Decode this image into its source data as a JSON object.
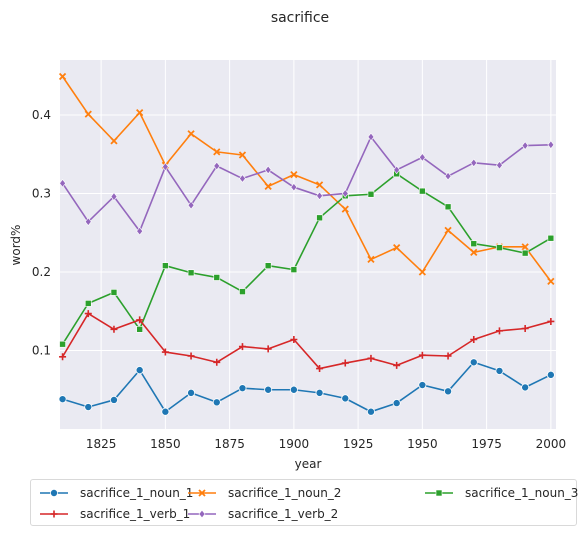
{
  "chart_data": {
    "type": "line",
    "title": "sacrifice",
    "xlabel": "year",
    "ylabel": "word%",
    "xlim": [
      1809,
      2002
    ],
    "ylim": [
      0.0,
      0.47
    ],
    "x_ticks": [
      1825,
      1850,
      1875,
      1900,
      1925,
      1950,
      1975,
      2000
    ],
    "x_tick_labels": [
      "1825",
      "1850",
      "1875",
      "1900",
      "1925",
      "1950",
      "1975",
      "2000"
    ],
    "y_ticks": [
      0.1,
      0.2,
      0.3,
      0.4
    ],
    "y_tick_labels": [
      "0.1",
      "0.2",
      "0.3",
      "0.4"
    ],
    "grid": true,
    "legend_position": "bottom",
    "x": [
      1810,
      1820,
      1830,
      1840,
      1850,
      1860,
      1870,
      1880,
      1890,
      1900,
      1910,
      1920,
      1930,
      1940,
      1950,
      1960,
      1970,
      1980,
      1990,
      2000
    ],
    "series": [
      {
        "name": "sacrifice_1_noun_1",
        "color": "#1f77b4",
        "marker": "circle",
        "values": [
          0.038,
          0.028,
          0.037,
          0.075,
          0.022,
          0.046,
          0.034,
          0.052,
          0.05,
          0.05,
          0.046,
          0.039,
          0.022,
          0.033,
          0.056,
          0.048,
          0.085,
          0.074,
          0.053,
          0.069
        ]
      },
      {
        "name": "sacrifice_1_noun_2",
        "color": "#ff7f0e",
        "marker": "x",
        "values": [
          0.449,
          0.401,
          0.367,
          0.403,
          0.336,
          0.376,
          0.353,
          0.349,
          0.309,
          0.324,
          0.311,
          0.28,
          0.216,
          0.231,
          0.2,
          0.253,
          0.225,
          0.232,
          0.232,
          0.188
        ]
      },
      {
        "name": "sacrifice_1_noun_3",
        "color": "#2ca02c",
        "marker": "square",
        "values": [
          0.108,
          0.16,
          0.174,
          0.127,
          0.208,
          0.199,
          0.193,
          0.175,
          0.208,
          0.203,
          0.269,
          0.297,
          0.299,
          0.325,
          0.303,
          0.283,
          0.236,
          0.231,
          0.224,
          0.243
        ]
      },
      {
        "name": "sacrifice_1_verb_1",
        "color": "#d62728",
        "marker": "plus",
        "values": [
          0.092,
          0.147,
          0.127,
          0.139,
          0.098,
          0.093,
          0.085,
          0.105,
          0.102,
          0.114,
          0.077,
          0.084,
          0.09,
          0.081,
          0.094,
          0.093,
          0.114,
          0.125,
          0.128,
          0.137
        ]
      },
      {
        "name": "sacrifice_1_verb_2",
        "color": "#9467bd",
        "marker": "diamond",
        "values": [
          0.313,
          0.264,
          0.296,
          0.252,
          0.334,
          0.285,
          0.335,
          0.319,
          0.33,
          0.308,
          0.297,
          0.3,
          0.372,
          0.33,
          0.346,
          0.322,
          0.339,
          0.336,
          0.361,
          0.362
        ]
      }
    ]
  }
}
